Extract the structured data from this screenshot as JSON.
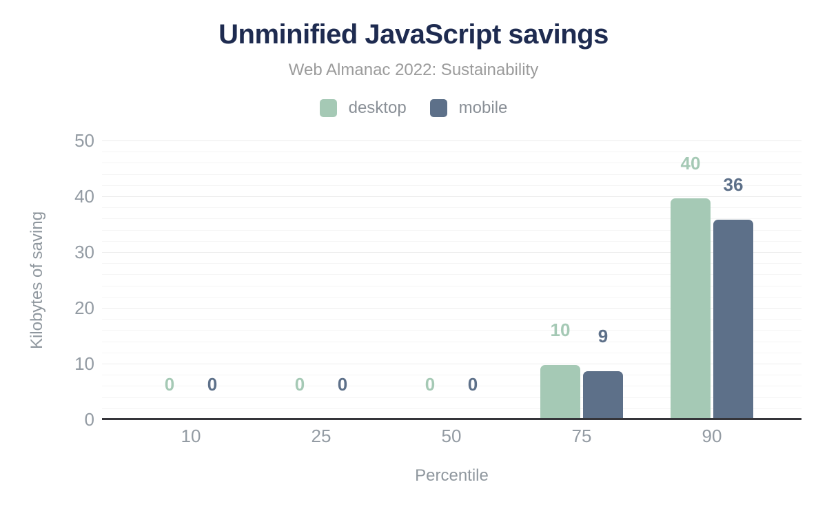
{
  "header": {
    "title": "Unminified JavaScript savings",
    "subtitle": "Web Almanac 2022: Sustainability"
  },
  "legend": {
    "items": [
      {
        "label": "desktop",
        "color": "#a5c9b5"
      },
      {
        "label": "mobile",
        "color": "#5d7089"
      }
    ]
  },
  "axes": {
    "y_title": "Kilobytes of saving",
    "x_title": "Percentile",
    "y_ticks": [
      "0",
      "10",
      "20",
      "30",
      "40",
      "50"
    ],
    "x_ticks": [
      "10",
      "25",
      "50",
      "75",
      "90"
    ]
  },
  "chart_data": {
    "type": "bar",
    "title": "Unminified JavaScript savings",
    "subtitle": "Web Almanac 2022: Sustainability",
    "xlabel": "Percentile",
    "ylabel": "Kilobytes of saving",
    "categories": [
      "10",
      "25",
      "50",
      "75",
      "90"
    ],
    "series": [
      {
        "name": "desktop",
        "color": "#a5c9b5",
        "values": [
          0,
          0,
          0,
          10,
          40
        ],
        "bar_heights_kb": [
          0,
          0,
          0,
          9.8,
          39.6
        ]
      },
      {
        "name": "mobile",
        "color": "#5d7089",
        "values": [
          0,
          0,
          0,
          9,
          36
        ],
        "bar_heights_kb": [
          0,
          0,
          0,
          8.7,
          35.8
        ]
      }
    ],
    "ylim": [
      0,
      50
    ],
    "yticks": [
      0,
      10,
      20,
      30,
      40,
      50
    ],
    "grid": {
      "minor_step": 2,
      "major_step": 10,
      "minor_color": "#f5f5f5",
      "major_color": "#ececec"
    },
    "legend_position": "top",
    "data_labels": true
  },
  "colors": {
    "background": "#ffffff",
    "title": "#1e2b50",
    "subtitle": "#9b9b9b",
    "legend_text": "#8a9097",
    "tick_label": "#939ba3",
    "axis_title": "#8f979e",
    "axis_line": "#35353a",
    "desktop": "#a5c9b5",
    "mobile": "#5d7089"
  }
}
